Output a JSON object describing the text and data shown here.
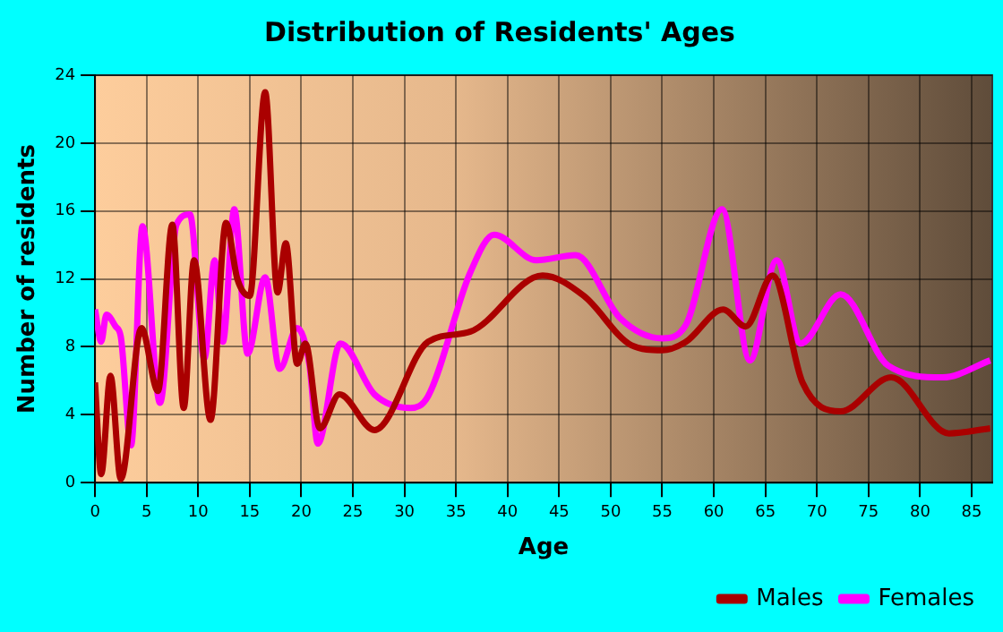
{
  "chart_data": {
    "type": "line",
    "title": "Distribution of Residents' Ages",
    "xlabel": "Age",
    "ylabel": "Number of residents",
    "xlim": [
      0,
      87
    ],
    "xticks": [
      0,
      5,
      10,
      15,
      20,
      25,
      30,
      35,
      40,
      45,
      50,
      55,
      60,
      65,
      70,
      75,
      80,
      85
    ],
    "ylim": [
      0,
      24
    ],
    "yticks": [
      0,
      4,
      8,
      12,
      16,
      20,
      24
    ],
    "grid": true,
    "legend": "bottom right",
    "marker": "none",
    "line_style": "solid",
    "series": [
      {
        "name": "Males",
        "color": "#aa0000",
        "x": [
          0,
          0.6,
          1.5,
          2.5,
          4.5,
          6.1,
          7.5,
          8.6,
          9.6,
          11.2,
          12.7,
          13.8,
          15,
          16.5,
          17.7,
          18.5,
          19.6,
          20.4,
          21.8,
          23.7,
          27.1,
          32.3,
          36.4,
          43.4,
          47.4,
          52,
          55,
          57.3,
          60.9,
          63.1,
          65.7,
          68.6,
          72.3,
          77.2,
          82.8,
          86.8
        ],
        "values": [
          5.9,
          0.5,
          6.3,
          0.2,
          9.1,
          5.4,
          15.2,
          4.4,
          13.1,
          3.7,
          15.3,
          12,
          11,
          23,
          11.2,
          14.1,
          7,
          8.2,
          3.2,
          5.2,
          3.1,
          8.3,
          8.9,
          12.2,
          11,
          8.1,
          7.8,
          8.3,
          10.2,
          9.2,
          12.2,
          5.9,
          4.2,
          6.2,
          2.9,
          3.2
        ]
      },
      {
        "name": "Females",
        "color": "#ff00ff",
        "x": [
          0,
          0.6,
          1.1,
          2,
          2.5,
          3.5,
          4.6,
          6.3,
          7.9,
          9.2,
          10.6,
          11.6,
          12.4,
          13.5,
          14.8,
          16.5,
          17.9,
          19.6,
          20.8,
          21.6,
          23.8,
          27.1,
          30.6,
          32.3,
          36.4,
          38.7,
          42.8,
          46.6,
          50.9,
          55,
          57.3,
          60.8,
          63.5,
          66.1,
          68.4,
          72.3,
          76.9,
          82.2,
          86.8
        ],
        "values": [
          10.2,
          8.3,
          9.9,
          9.2,
          8.6,
          2.2,
          15.1,
          4.7,
          15.2,
          15.8,
          7.3,
          13.1,
          8.3,
          16.1,
          7.6,
          12.1,
          6.7,
          9.1,
          6.9,
          2.3,
          8.2,
          5.2,
          4.4,
          5.1,
          12.4,
          14.6,
          13.1,
          13.4,
          9.7,
          8.5,
          9.3,
          16.1,
          7.2,
          13.1,
          8.2,
          11.1,
          6.9,
          6.2,
          7.2
        ]
      }
    ]
  }
}
